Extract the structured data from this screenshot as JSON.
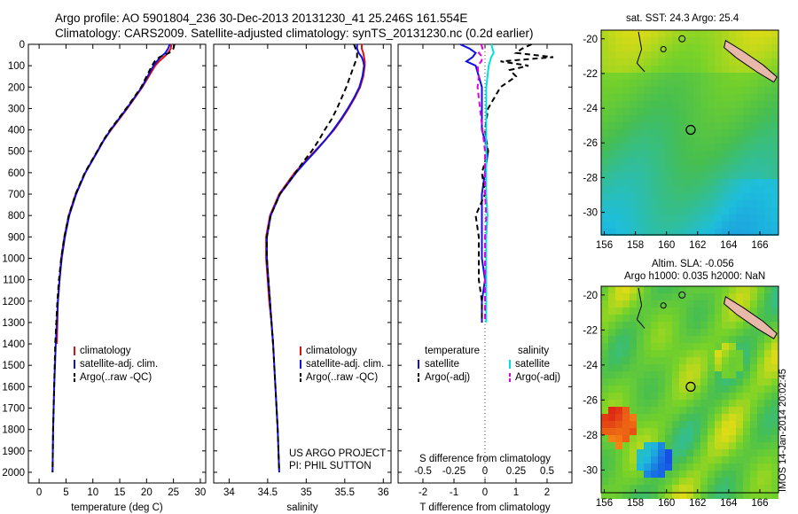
{
  "header": {
    "line1": "Argo profile: AO 5901804_236 30-Dec-2013 20131230_41 25.246S 161.554E",
    "line2": "Climatology: CARS2009. Satellite-adjusted climatology: synTS_20131230.nc (0.2d earlier)"
  },
  "side_label": "IMOS 14-Jan-2014 20:02:45",
  "colors": {
    "clim": "#e01010",
    "sat": "#1010e0",
    "argo": "#000000",
    "sat_s": "#00e0e0",
    "argo_s": "#e000e0"
  },
  "chart_data": [
    {
      "type": "line",
      "panel": "temperature",
      "xlabel": "temperature (deg C)",
      "ylabel": "",
      "xlim": [
        -2,
        31
      ],
      "ylim": [
        2050,
        0
      ],
      "xticks": [
        "0",
        "5",
        "10",
        "15",
        "20",
        "25",
        "30"
      ],
      "yticks": [
        "0",
        "100",
        "200",
        "300",
        "400",
        "500",
        "600",
        "700",
        "800",
        "900",
        "1000",
        "1100",
        "1200",
        "1300",
        "1400",
        "1500",
        "1600",
        "1700",
        "1800",
        "1900",
        "2000"
      ],
      "legend": [
        "climatology",
        "satellite-adj. clim.",
        "Argo(..raw -QC)"
      ],
      "series": [
        {
          "name": "climatology",
          "depth": [
            0,
            20,
            40,
            60,
            80,
            100,
            150,
            200,
            250,
            300,
            350,
            400,
            450,
            500,
            600,
            700,
            800,
            900,
            1000,
            1100,
            1200,
            1300,
            1400
          ],
          "values": [
            24.6,
            24.5,
            24.0,
            23.2,
            22.3,
            21.6,
            20.4,
            19.2,
            17.8,
            16.4,
            14.9,
            13.4,
            12.0,
            10.8,
            8.6,
            6.8,
            5.5,
            4.7,
            4.1,
            3.8,
            3.5,
            3.4,
            3.3
          ]
        },
        {
          "name": "satellite-adj. clim.",
          "depth": [
            0,
            20,
            40,
            60,
            80,
            100,
            150,
            200,
            250,
            300,
            350,
            400,
            450,
            500,
            600,
            700,
            800,
            900,
            1000,
            1100,
            1200,
            1300,
            1400,
            1600,
            1800,
            2000
          ],
          "values": [
            24.3,
            24.0,
            23.5,
            22.6,
            21.9,
            21.3,
            20.2,
            19.1,
            17.7,
            16.3,
            14.8,
            13.3,
            12.0,
            10.9,
            8.6,
            6.9,
            5.6,
            4.8,
            4.2,
            3.8,
            3.5,
            3.3,
            3.1,
            2.8,
            2.6,
            2.5
          ]
        },
        {
          "name": "Argo(..raw -QC)",
          "depth": [
            0,
            20,
            40,
            60,
            80,
            100,
            150,
            200,
            250,
            300,
            350,
            400,
            450,
            500,
            600,
            700,
            800,
            900,
            1000,
            1100,
            1200,
            1300,
            1400,
            1600,
            1800,
            2000
          ],
          "values": [
            25.2,
            25.0,
            24.2,
            22.4,
            21.5,
            21.0,
            20.0,
            19.0,
            17.6,
            16.2,
            14.7,
            13.2,
            11.9,
            10.8,
            8.5,
            6.8,
            5.5,
            4.7,
            4.1,
            3.7,
            3.4,
            3.2,
            3.0,
            2.8,
            2.6,
            2.5
          ]
        }
      ]
    },
    {
      "type": "line",
      "panel": "salinity",
      "xlabel": "salinity",
      "xlim": [
        33.8,
        36.1
      ],
      "ylim": [
        2050,
        0
      ],
      "xticks": [
        "34",
        "34.5",
        "35",
        "35.5",
        "36"
      ],
      "legend": [
        "climatology",
        "satellite-adj. clim.",
        "Argo(..raw -QC)"
      ],
      "annotation": [
        "US ARGO PROJECT",
        "PI: PHIL SUTTON"
      ],
      "series": [
        {
          "name": "climatology",
          "depth": [
            0,
            20,
            40,
            60,
            80,
            100,
            150,
            200,
            250,
            300,
            350,
            400,
            450,
            500,
            550,
            600,
            700,
            800,
            900,
            1000,
            1100,
            1200,
            1300,
            1400
          ],
          "values": [
            35.72,
            35.72,
            35.74,
            35.75,
            35.76,
            35.76,
            35.74,
            35.7,
            35.63,
            35.55,
            35.46,
            35.36,
            35.24,
            35.11,
            34.98,
            34.85,
            34.65,
            34.53,
            34.48,
            34.48,
            34.5,
            34.52,
            34.55,
            34.57
          ]
        },
        {
          "name": "satellite-adj. clim.",
          "depth": [
            0,
            20,
            40,
            60,
            80,
            100,
            150,
            200,
            250,
            300,
            350,
            400,
            450,
            500,
            550,
            600,
            700,
            800,
            900,
            1000,
            1100,
            1200,
            1300,
            1400,
            1600,
            1800,
            2000
          ],
          "values": [
            35.66,
            35.66,
            35.68,
            35.72,
            35.74,
            35.75,
            35.73,
            35.69,
            35.62,
            35.54,
            35.45,
            35.35,
            35.24,
            35.12,
            34.99,
            34.87,
            34.66,
            34.54,
            34.49,
            34.49,
            34.51,
            34.53,
            34.55,
            34.57,
            34.6,
            34.63,
            34.65
          ]
        },
        {
          "name": "Argo(..raw -QC)",
          "depth": [
            0,
            20,
            40,
            60,
            80,
            100,
            150,
            200,
            250,
            300,
            350,
            400,
            450,
            500,
            550,
            600,
            700,
            800,
            900,
            1000,
            1100,
            1200,
            1300,
            1400,
            1600,
            1800,
            2000
          ],
          "values": [
            35.62,
            35.64,
            35.66,
            35.66,
            35.64,
            35.62,
            35.57,
            35.52,
            35.46,
            35.4,
            35.33,
            35.24,
            35.16,
            35.07,
            34.96,
            34.86,
            34.66,
            34.54,
            34.49,
            34.49,
            34.51,
            34.53,
            34.55,
            34.57,
            34.6,
            34.63,
            34.65
          ]
        }
      ]
    },
    {
      "type": "line",
      "panel": "difference",
      "xlabel": "T difference from climatology",
      "xlabel2": "S difference from climatology",
      "xlim": [
        -2.8,
        2.8
      ],
      "ylim": [
        2050,
        0
      ],
      "xticks": [
        "-2",
        "-1",
        "0",
        "1",
        "2"
      ],
      "xticks2": [
        "-0.5",
        "-0.25",
        "0",
        "0.25",
        "0.5"
      ],
      "legend_temperature": [
        "temperature",
        "satellite",
        "Argo(-adj)"
      ],
      "legend_salinity": [
        "salinity",
        "satellite",
        "Argo(-adj)"
      ],
      "series": [
        {
          "name": "temperature satellite",
          "depth": [
            0,
            20,
            40,
            60,
            80,
            100,
            150,
            200,
            300,
            400,
            500,
            600,
            700,
            800,
            900,
            1000,
            1100,
            1200,
            1300
          ],
          "values": [
            -0.8,
            -0.5,
            -0.3,
            -0.4,
            -0.6,
            -0.3,
            -0.2,
            -0.1,
            -0.1,
            -0.1,
            0.1,
            0.0,
            -0.1,
            -0.1,
            -0.1,
            -0.1,
            0.0,
            -0.1,
            -0.1
          ]
        },
        {
          "name": "temperature Argo(-adj)",
          "depth": [
            0,
            20,
            40,
            60,
            80,
            100,
            120,
            150,
            200,
            300,
            400,
            500,
            600,
            700,
            800,
            900,
            1000,
            1100,
            1200,
            1300
          ],
          "values": [
            1.5,
            1.2,
            1.0,
            2.2,
            0.5,
            1.4,
            0.8,
            1.0,
            0.5,
            0.1,
            0.0,
            0.1,
            -0.1,
            0.0,
            -0.3,
            -0.2,
            -0.2,
            -0.2,
            -0.1,
            -0.1
          ]
        },
        {
          "name": "salinity satellite",
          "depth": [
            0,
            20,
            40,
            60,
            80,
            100,
            150,
            200,
            300,
            400,
            500,
            600,
            700,
            800,
            900,
            1000,
            1100,
            1200,
            1300
          ],
          "values": [
            0.05,
            0.06,
            0.07,
            0.05,
            0.04,
            0.03,
            0.02,
            0.01,
            0.01,
            0.01,
            0.01,
            0.01,
            0.01,
            0.02,
            0.01,
            0.01,
            0.01,
            0.01,
            0.01
          ]
        },
        {
          "name": "salinity Argo(-adj)",
          "depth": [
            0,
            20,
            40,
            60,
            80,
            100,
            150,
            200,
            300,
            400,
            500,
            600,
            700,
            800,
            900,
            1000,
            1100,
            1200,
            1300
          ],
          "values": [
            -0.03,
            -0.02,
            -0.05,
            -0.02,
            -0.03,
            -0.06,
            -0.05,
            -0.06,
            -0.04,
            -0.02,
            0.0,
            0.0,
            0.0,
            0.01,
            0.0,
            0.0,
            0.0,
            0.0,
            0.0
          ]
        }
      ]
    },
    {
      "type": "heatmap",
      "panel": "map_sst",
      "title": "sat. SST: 24.3 Argo: 25.4",
      "xticks": [
        "156",
        "158",
        "160",
        "162",
        "164",
        "166"
      ],
      "yticks": [
        "-20",
        "-22",
        "-24",
        "-26",
        "-28",
        "-30"
      ],
      "xlim": [
        155.8,
        167.2
      ],
      "ylim": [
        -31.3,
        -19.5
      ],
      "argo_position": [
        161.554,
        -25.246
      ]
    },
    {
      "type": "heatmap",
      "panel": "map_sla",
      "title": "Altim. SLA: -0.056",
      "subtitle": "Argo h1000: 0.035 h2000: NaN",
      "xticks": [
        "156",
        "158",
        "160",
        "162",
        "164",
        "166"
      ],
      "yticks": [
        "-20",
        "-22",
        "-24",
        "-26",
        "-28",
        "-30"
      ],
      "xlim": [
        155.8,
        167.2
      ],
      "ylim": [
        -31.3,
        -19.5
      ],
      "argo_position": [
        161.554,
        -25.246
      ]
    }
  ]
}
